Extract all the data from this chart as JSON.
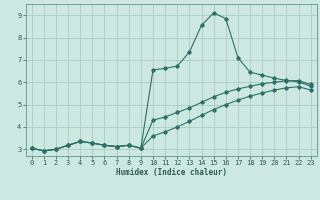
{
  "xlabel": "Humidex (Indice chaleur)",
  "xlim": [
    -0.5,
    23.5
  ],
  "ylim": [
    2.7,
    9.5
  ],
  "xticks": [
    0,
    1,
    2,
    3,
    4,
    5,
    6,
    7,
    8,
    9,
    10,
    11,
    12,
    13,
    14,
    15,
    16,
    17,
    18,
    19,
    20,
    21,
    22,
    23
  ],
  "yticks": [
    3,
    4,
    5,
    6,
    7,
    8,
    9
  ],
  "background_color": "#cde8e0",
  "grid_color": "#aaccc4",
  "line_color": "#2d7068",
  "line1_x": [
    0,
    1,
    2,
    3,
    4,
    5,
    6,
    7,
    8,
    9,
    10,
    11,
    12,
    13,
    14,
    15,
    16,
    17,
    18,
    19,
    20,
    21,
    22,
    23
  ],
  "line1_y": [
    3.05,
    2.93,
    3.0,
    3.18,
    3.35,
    3.28,
    3.18,
    3.12,
    3.18,
    3.05,
    6.55,
    6.62,
    6.72,
    7.35,
    8.55,
    9.1,
    8.85,
    7.1,
    6.45,
    6.32,
    6.18,
    6.08,
    6.02,
    5.82
  ],
  "line2_x": [
    0,
    1,
    2,
    3,
    4,
    5,
    6,
    7,
    8,
    9,
    10,
    11,
    12,
    13,
    14,
    15,
    16,
    17,
    18,
    19,
    20,
    21,
    22,
    23
  ],
  "line2_y": [
    3.05,
    2.93,
    3.0,
    3.18,
    3.35,
    3.28,
    3.18,
    3.12,
    3.18,
    3.05,
    4.3,
    4.45,
    4.65,
    4.85,
    5.1,
    5.35,
    5.55,
    5.7,
    5.82,
    5.93,
    6.0,
    6.07,
    6.07,
    5.9
  ],
  "line3_x": [
    0,
    1,
    2,
    3,
    4,
    5,
    6,
    7,
    8,
    9,
    10,
    11,
    12,
    13,
    14,
    15,
    16,
    17,
    18,
    19,
    20,
    21,
    22,
    23
  ],
  "line3_y": [
    3.05,
    2.93,
    3.0,
    3.18,
    3.35,
    3.28,
    3.18,
    3.12,
    3.18,
    3.05,
    3.6,
    3.78,
    4.0,
    4.25,
    4.52,
    4.78,
    5.0,
    5.2,
    5.38,
    5.52,
    5.65,
    5.75,
    5.8,
    5.65
  ]
}
